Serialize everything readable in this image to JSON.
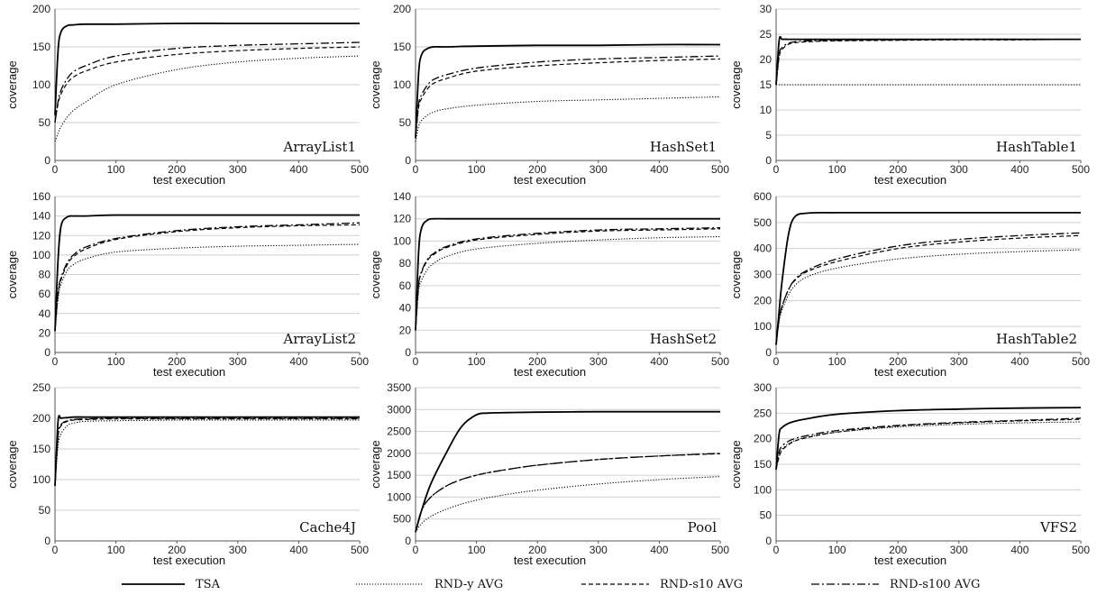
{
  "chart_data": [
    {
      "type": "line",
      "title": "ArrayList1",
      "xlabel": "test execution",
      "ylabel": "coverage",
      "xlim": [
        0,
        500
      ],
      "ylim": [
        0,
        200
      ],
      "xticks": [
        0,
        100,
        200,
        300,
        400,
        500
      ],
      "yticks": [
        0,
        50,
        100,
        150,
        200
      ],
      "grid": true,
      "x": [
        0,
        5,
        10,
        20,
        30,
        50,
        100,
        200,
        300,
        400,
        500
      ],
      "series": [
        {
          "name": "TSA",
          "values": [
            60,
            145,
            170,
            178,
            179,
            180,
            180,
            181,
            181,
            181,
            181
          ]
        },
        {
          "name": "RND-y AVG",
          "values": [
            25,
            36,
            45,
            57,
            66,
            77,
            100,
            120,
            130,
            135,
            138
          ]
        },
        {
          "name": "RND-s10 AVG",
          "values": [
            50,
            75,
            88,
            102,
            110,
            118,
            130,
            140,
            145,
            148,
            150
          ]
        },
        {
          "name": "RND-s100 AVG",
          "values": [
            50,
            78,
            93,
            108,
            117,
            125,
            138,
            148,
            152,
            154,
            156
          ]
        }
      ]
    },
    {
      "type": "line",
      "title": "HashSet1",
      "xlabel": "test execution",
      "ylabel": "coverage",
      "xlim": [
        0,
        500
      ],
      "ylim": [
        0,
        200
      ],
      "xticks": [
        0,
        100,
        200,
        300,
        400,
        500
      ],
      "yticks": [
        0,
        50,
        100,
        150,
        200
      ],
      "grid": true,
      "x": [
        0,
        5,
        10,
        20,
        30,
        50,
        100,
        200,
        300,
        400,
        500
      ],
      "series": [
        {
          "name": "TSA",
          "values": [
            30,
            115,
            140,
            148,
            150,
            150,
            151,
            152,
            152,
            153,
            153
          ]
        },
        {
          "name": "RND-y AVG",
          "values": [
            25,
            45,
            53,
            60,
            64,
            68,
            73,
            78,
            80,
            82,
            84
          ]
        },
        {
          "name": "RND-s10 AVG",
          "values": [
            30,
            70,
            82,
            95,
            102,
            108,
            118,
            125,
            129,
            132,
            134
          ]
        },
        {
          "name": "RND-s100 AVG",
          "values": [
            30,
            74,
            87,
            100,
            107,
            113,
            122,
            130,
            134,
            136,
            138
          ]
        }
      ]
    },
    {
      "type": "line",
      "title": "HashTable1",
      "xlabel": "test execution",
      "ylabel": "coverage",
      "xlim": [
        0,
        500
      ],
      "ylim": [
        0,
        30
      ],
      "xticks": [
        0,
        100,
        200,
        300,
        400,
        500
      ],
      "yticks": [
        0,
        5,
        10,
        15,
        20,
        25,
        30
      ],
      "grid": true,
      "x": [
        0,
        5,
        10,
        20,
        30,
        50,
        100,
        200,
        300,
        400,
        500
      ],
      "series": [
        {
          "name": "TSA",
          "values": [
            15,
            23.8,
            24,
            24,
            24,
            24,
            24,
            24,
            24,
            24,
            24
          ]
        },
        {
          "name": "RND-y AVG",
          "values": [
            15,
            15,
            15,
            15,
            15,
            15,
            15,
            15,
            15,
            15,
            15
          ]
        },
        {
          "name": "RND-s10 AVG",
          "values": [
            15,
            20.5,
            22,
            23,
            23.3,
            23.5,
            23.7,
            23.8,
            23.9,
            23.9,
            24
          ]
        },
        {
          "name": "RND-s100 AVG",
          "values": [
            15,
            21,
            22.4,
            23.2,
            23.5,
            23.7,
            23.8,
            23.9,
            24,
            24,
            24
          ]
        }
      ]
    },
    {
      "type": "line",
      "title": "ArrayList2",
      "xlabel": "test execution",
      "ylabel": "coverage",
      "xlim": [
        0,
        500
      ],
      "ylim": [
        0,
        160
      ],
      "xticks": [
        0,
        100,
        200,
        300,
        400,
        500
      ],
      "yticks": [
        0,
        20,
        40,
        60,
        80,
        100,
        120,
        140,
        160
      ],
      "grid": true,
      "x": [
        0,
        5,
        10,
        20,
        30,
        50,
        100,
        200,
        300,
        400,
        500
      ],
      "series": [
        {
          "name": "TSA",
          "values": [
            22,
            95,
            130,
            139,
            140,
            140,
            141,
            141,
            141,
            141,
            141
          ]
        },
        {
          "name": "RND-y AVG",
          "values": [
            22,
            55,
            70,
            84,
            90,
            96,
            103,
            107,
            109,
            110,
            111
          ]
        },
        {
          "name": "RND-s10 AVG",
          "values": [
            22,
            60,
            75,
            90,
            98,
            106,
            116,
            124,
            128,
            130,
            131
          ]
        },
        {
          "name": "RND-s100 AVG",
          "values": [
            22,
            62,
            77,
            92,
            100,
            108,
            117,
            125,
            129,
            131,
            133
          ]
        }
      ]
    },
    {
      "type": "line",
      "title": "HashSet2",
      "xlabel": "test execution",
      "ylabel": "coverage",
      "xlim": [
        0,
        500
      ],
      "ylim": [
        0,
        140
      ],
      "xticks": [
        0,
        100,
        200,
        300,
        400,
        500
      ],
      "yticks": [
        0,
        20,
        40,
        60,
        80,
        100,
        120,
        140
      ],
      "grid": true,
      "x": [
        0,
        5,
        10,
        20,
        30,
        50,
        100,
        200,
        300,
        400,
        500
      ],
      "series": [
        {
          "name": "TSA",
          "values": [
            20,
            90,
            112,
            119,
            120,
            120,
            120,
            120,
            120,
            120,
            120
          ]
        },
        {
          "name": "RND-y AVG",
          "values": [
            20,
            55,
            65,
            75,
            80,
            86,
            93,
            98,
            101,
            103,
            104
          ]
        },
        {
          "name": "RND-s10 AVG",
          "values": [
            20,
            60,
            72,
            83,
            88,
            94,
            101,
            106,
            109,
            110,
            111
          ]
        },
        {
          "name": "RND-s100 AVG",
          "values": [
            20,
            61,
            73,
            84,
            89,
            95,
            102,
            107,
            110,
            111,
            112
          ]
        }
      ]
    },
    {
      "type": "line",
      "title": "HashTable2",
      "xlabel": "test execution",
      "ylabel": "coverage",
      "xlim": [
        0,
        500
      ],
      "ylim": [
        0,
        600
      ],
      "xticks": [
        0,
        100,
        200,
        300,
        400,
        500
      ],
      "yticks": [
        0,
        100,
        200,
        300,
        400,
        500,
        600
      ],
      "grid": true,
      "x": [
        0,
        5,
        10,
        20,
        30,
        50,
        100,
        200,
        300,
        400,
        500
      ],
      "series": [
        {
          "name": "TSA",
          "values": [
            30,
            160,
            280,
            450,
            520,
            536,
            538,
            538,
            538,
            538,
            538
          ]
        },
        {
          "name": "RND-y AVG",
          "values": [
            30,
            120,
            165,
            220,
            255,
            290,
            325,
            360,
            378,
            388,
            395
          ]
        },
        {
          "name": "RND-s10 AVG",
          "values": [
            30,
            130,
            180,
            240,
            275,
            310,
            350,
            400,
            425,
            440,
            450
          ]
        },
        {
          "name": "RND-s100 AVG",
          "values": [
            30,
            130,
            180,
            240,
            278,
            315,
            360,
            410,
            435,
            450,
            460
          ]
        }
      ]
    },
    {
      "type": "line",
      "title": "Cache4J",
      "xlabel": "test execution",
      "ylabel": "coverage",
      "xlim": [
        0,
        500
      ],
      "ylim": [
        0,
        250
      ],
      "xticks": [
        0,
        100,
        200,
        300,
        400,
        500
      ],
      "yticks": [
        0,
        50,
        100,
        150,
        200,
        250
      ],
      "grid": true,
      "x": [
        0,
        5,
        10,
        20,
        30,
        50,
        100,
        200,
        300,
        400,
        500
      ],
      "series": [
        {
          "name": "TSA",
          "values": [
            90,
            195,
            200,
            201,
            202,
            202,
            202,
            202,
            202,
            202,
            202
          ]
        },
        {
          "name": "RND-y AVG",
          "values": [
            90,
            155,
            175,
            188,
            192,
            195,
            196,
            197,
            197,
            197,
            197
          ]
        },
        {
          "name": "RND-s10 AVG",
          "values": [
            90,
            170,
            188,
            195,
            197,
            198,
            199,
            199,
            199,
            199,
            199
          ]
        },
        {
          "name": "RND-s100 AVG",
          "values": [
            90,
            172,
            190,
            196,
            198,
            199,
            200,
            200,
            200,
            200,
            200
          ]
        }
      ]
    },
    {
      "type": "line",
      "title": "Pool",
      "xlabel": "test execution",
      "ylabel": "coverage",
      "xlim": [
        0,
        500
      ],
      "ylim": [
        0,
        3500
      ],
      "xticks": [
        0,
        100,
        200,
        300,
        400,
        500
      ],
      "yticks": [
        0,
        500,
        1000,
        1500,
        2000,
        2500,
        3000,
        3500
      ],
      "grid": true,
      "x": [
        0,
        10,
        25,
        50,
        75,
        100,
        120,
        150,
        200,
        300,
        400,
        500
      ],
      "series": [
        {
          "name": "TSA",
          "values": [
            200,
            700,
            1300,
            2000,
            2600,
            2880,
            2920,
            2930,
            2940,
            2950,
            2950,
            2950
          ]
        },
        {
          "name": "RND-y AVG",
          "values": [
            200,
            400,
            560,
            720,
            840,
            930,
            990,
            1060,
            1160,
            1300,
            1400,
            1470
          ]
        },
        {
          "name": "RND-s10 AVG",
          "values": [
            200,
            700,
            1000,
            1250,
            1400,
            1500,
            1560,
            1630,
            1730,
            1860,
            1940,
            1990
          ]
        },
        {
          "name": "RND-s100 AVG",
          "values": [
            200,
            700,
            1000,
            1250,
            1400,
            1500,
            1560,
            1630,
            1730,
            1860,
            1940,
            2000
          ]
        }
      ]
    },
    {
      "type": "line",
      "title": "VFS2",
      "xlabel": "test execution",
      "ylabel": "coverage",
      "xlim": [
        0,
        500
      ],
      "ylim": [
        0,
        300
      ],
      "xticks": [
        0,
        100,
        200,
        300,
        400,
        500
      ],
      "yticks": [
        0,
        50,
        100,
        150,
        200,
        250,
        300
      ],
      "grid": true,
      "x": [
        0,
        5,
        10,
        20,
        30,
        50,
        100,
        200,
        300,
        400,
        500
      ],
      "series": [
        {
          "name": "TSA",
          "values": [
            140,
            210,
            222,
            230,
            234,
            239,
            248,
            255,
            258,
            260,
            261
          ]
        },
        {
          "name": "RND-y AVG",
          "values": [
            140,
            170,
            180,
            190,
            196,
            203,
            213,
            223,
            228,
            231,
            233
          ]
        },
        {
          "name": "RND-s10 AVG",
          "values": [
            140,
            165,
            178,
            188,
            195,
            202,
            213,
            225,
            231,
            235,
            238
          ]
        },
        {
          "name": "RND-s100 AVG",
          "values": [
            140,
            175,
            186,
            195,
            200,
            206,
            216,
            226,
            232,
            236,
            240
          ]
        }
      ]
    }
  ],
  "legend": {
    "placement": "bottom",
    "items": [
      {
        "label": "TSA",
        "style": "solid"
      },
      {
        "label": "RND-y AVG",
        "style": "dotted"
      },
      {
        "label": "RND-s10 AVG",
        "style": "dashed"
      },
      {
        "label": "RND-s100 AVG",
        "style": "dash-dot"
      }
    ]
  }
}
